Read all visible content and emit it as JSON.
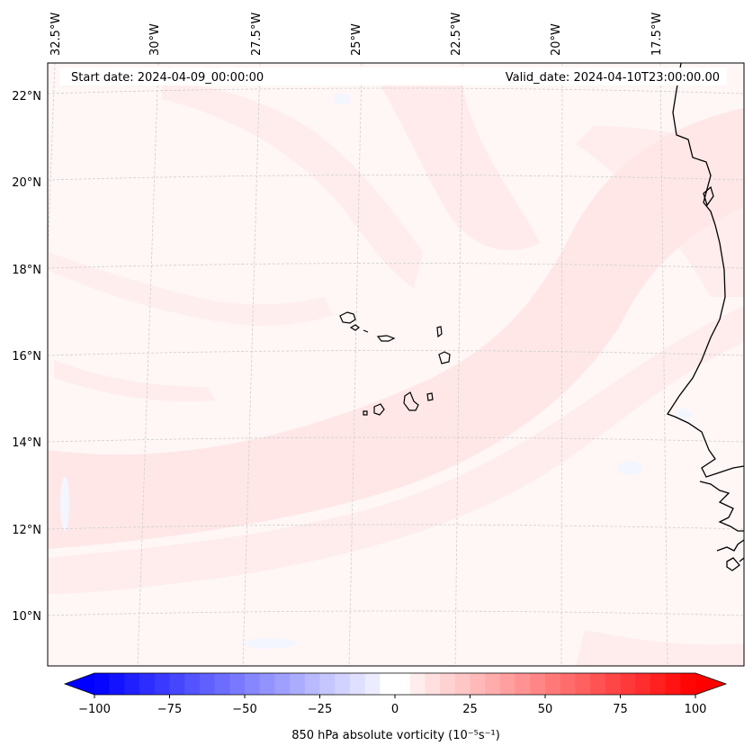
{
  "header": {
    "start_date": "Start date: 2024-04-09_00:00:00",
    "valid_date": "Valid_date: 2024-04-10T23:00:00.00"
  },
  "longitude_labels": [
    "32.5°W",
    "30°W",
    "27.5°W",
    "25°W",
    "22.5°W",
    "20°W",
    "17.5°W"
  ],
  "latitude_labels": [
    "22°N",
    "20°N",
    "18°N",
    "16°N",
    "14°N",
    "12°N",
    "10°N"
  ],
  "colorbar": {
    "label": "850 hPa absolute vorticity",
    "units": "(10⁻⁵s⁻¹)",
    "ticks": [
      "−100",
      "−75",
      "−50",
      "−25",
      "0",
      "25",
      "50",
      "75",
      "100"
    ],
    "min": -100,
    "max": 100,
    "step": 5,
    "negative_color": "#0000ff",
    "positive_color": "#ff0000"
  },
  "colors": {
    "background_fill": "#fff5f5",
    "band_fill": "#ffe3e3",
    "coast": "#000000",
    "grid": "#cfcfcf"
  }
}
